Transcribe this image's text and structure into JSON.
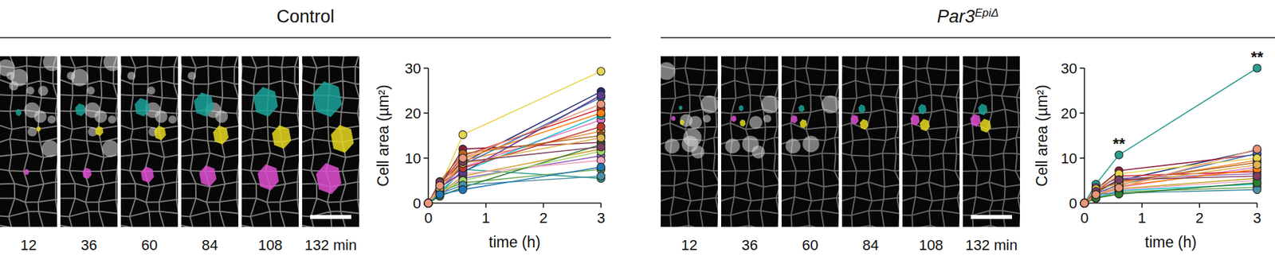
{
  "chart_data": [
    {
      "type": "line",
      "title": "Control",
      "x_label": "time (h)",
      "y_label": "Cell area (µm²)",
      "x": [
        0,
        0.2,
        0.6,
        3
      ],
      "xlim": [
        0,
        3
      ],
      "xticks": [
        0,
        1,
        2,
        3
      ],
      "ylim": [
        0,
        30
      ],
      "yticks": [
        0,
        10,
        20,
        30
      ],
      "grid": false,
      "marker": "circle",
      "series": [
        {
          "color": "#e8d44d",
          "values": [
            0,
            3.5,
            15.2,
            29.3
          ]
        },
        {
          "color": "#2a9d8f",
          "values": [
            0,
            2.0,
            7.5,
            5.5
          ]
        },
        {
          "color": "#1d2f6f",
          "values": [
            0,
            4.5,
            9.0,
            24.8
          ]
        },
        {
          "color": "#8c1c3a",
          "values": [
            0,
            3.8,
            12.0,
            13.5
          ]
        },
        {
          "color": "#f08a3c",
          "values": [
            0,
            2.8,
            9.5,
            16.0
          ]
        },
        {
          "color": "#e377c2",
          "values": [
            0,
            3.0,
            8.0,
            18.5
          ]
        },
        {
          "color": "#6aa84f",
          "values": [
            0,
            2.5,
            4.5,
            7.5
          ]
        },
        {
          "color": "#d62728",
          "values": [
            0,
            4.0,
            10.5,
            21.0
          ]
        },
        {
          "color": "#c9a227",
          "values": [
            0,
            2.2,
            6.0,
            12.0
          ]
        },
        {
          "color": "#3e6db5",
          "values": [
            0,
            3.2,
            8.5,
            23.5
          ]
        },
        {
          "color": "#9467bd",
          "values": [
            0,
            1.8,
            5.5,
            10.5
          ]
        },
        {
          "color": "#17becf",
          "values": [
            0,
            2.6,
            7.0,
            19.5
          ]
        },
        {
          "color": "#b5651d",
          "values": [
            0,
            4.8,
            11.0,
            15.0
          ]
        },
        {
          "color": "#f4a6c0",
          "values": [
            0,
            3.4,
            6.5,
            9.5
          ]
        },
        {
          "color": "#2e7d32",
          "values": [
            0,
            1.5,
            3.5,
            13.0
          ]
        },
        {
          "color": "#ff7f0e",
          "values": [
            0,
            2.9,
            9.8,
            20.0
          ]
        },
        {
          "color": "#5c3c92",
          "values": [
            0,
            3.6,
            6.8,
            24.0
          ]
        },
        {
          "color": "#a0d468",
          "values": [
            0,
            2.4,
            5.0,
            11.5
          ]
        },
        {
          "color": "#c0392b",
          "values": [
            0,
            4.2,
            7.8,
            17.0
          ]
        },
        {
          "color": "#4a90a4",
          "values": [
            0,
            2.1,
            4.0,
            6.0
          ]
        },
        {
          "color": "#dcb34f",
          "values": [
            0,
            3.3,
            8.8,
            14.5
          ]
        },
        {
          "color": "#7b3f61",
          "values": [
            0,
            4.6,
            9.2,
            12.5
          ]
        },
        {
          "color": "#1f77b4",
          "values": [
            0,
            1.9,
            3.0,
            8.0
          ]
        },
        {
          "color": "#e9967a",
          "values": [
            0,
            3.9,
            10.0,
            22.0
          ]
        }
      ]
    },
    {
      "type": "line",
      "title": "Par3",
      "title_superscript": "EpiΔ",
      "x_label": "time (h)",
      "y_label": "Cell area (µm²)",
      "x": [
        0,
        0.2,
        0.6,
        3
      ],
      "xlim": [
        0,
        3
      ],
      "xticks": [
        0,
        1,
        2,
        3
      ],
      "ylim": [
        0,
        30
      ],
      "yticks": [
        0,
        10,
        20,
        30
      ],
      "grid": false,
      "marker": "circle",
      "annotations": [
        {
          "x": 0.6,
          "y": 10.7,
          "text": "**"
        },
        {
          "x": 3,
          "y": 30.0,
          "text": "**"
        }
      ],
      "series": [
        {
          "color": "#2a9d8f",
          "values": [
            0,
            4.2,
            10.7,
            30.0
          ]
        },
        {
          "color": "#1d2f6f",
          "values": [
            0,
            2.5,
            5.0,
            11.8
          ]
        },
        {
          "color": "#8c1c3a",
          "values": [
            0,
            3.0,
            7.2,
            10.8
          ]
        },
        {
          "color": "#f08a3c",
          "values": [
            0,
            1.5,
            4.5,
            9.5
          ]
        },
        {
          "color": "#e377c2",
          "values": [
            0,
            2.0,
            3.5,
            8.0
          ]
        },
        {
          "color": "#6aa84f",
          "values": [
            0,
            1.0,
            2.5,
            3.5
          ]
        },
        {
          "color": "#d62728",
          "values": [
            0,
            2.8,
            6.0,
            7.0
          ]
        },
        {
          "color": "#c9a227",
          "values": [
            0,
            1.8,
            3.2,
            5.5
          ]
        },
        {
          "color": "#3e6db5",
          "values": [
            0,
            2.2,
            4.0,
            11.0
          ]
        },
        {
          "color": "#9467bd",
          "values": [
            0,
            3.5,
            5.5,
            6.5
          ]
        },
        {
          "color": "#17becf",
          "values": [
            0,
            1.2,
            2.8,
            4.2
          ]
        },
        {
          "color": "#b5651d",
          "values": [
            0,
            2.4,
            4.8,
            9.0
          ]
        },
        {
          "color": "#f4a6c0",
          "values": [
            0,
            1.6,
            3.0,
            5.0
          ]
        },
        {
          "color": "#e8d44d",
          "values": [
            0,
            2.9,
            6.5,
            10.0
          ]
        },
        {
          "color": "#ff7f0e",
          "values": [
            0,
            1.4,
            3.8,
            7.5
          ]
        },
        {
          "color": "#4a90a4",
          "values": [
            0,
            2.0,
            2.2,
            3.0
          ]
        },
        {
          "color": "#dcb34f",
          "values": [
            0,
            3.2,
            4.2,
            8.5
          ]
        },
        {
          "color": "#2e7d32",
          "values": [
            0,
            1.1,
            2.0,
            4.5
          ]
        },
        {
          "color": "#7b3f61",
          "values": [
            0,
            2.6,
            5.2,
            6.0
          ]
        },
        {
          "color": "#e9967a",
          "values": [
            0,
            1.9,
            3.4,
            12.0
          ]
        }
      ]
    }
  ],
  "image_strips": [
    {
      "time_labels": [
        "12",
        "36",
        "60",
        "84",
        "108",
        "132 min"
      ]
    },
    {
      "time_labels": [
        "12",
        "36",
        "60",
        "84",
        "108",
        "132 min"
      ]
    }
  ]
}
